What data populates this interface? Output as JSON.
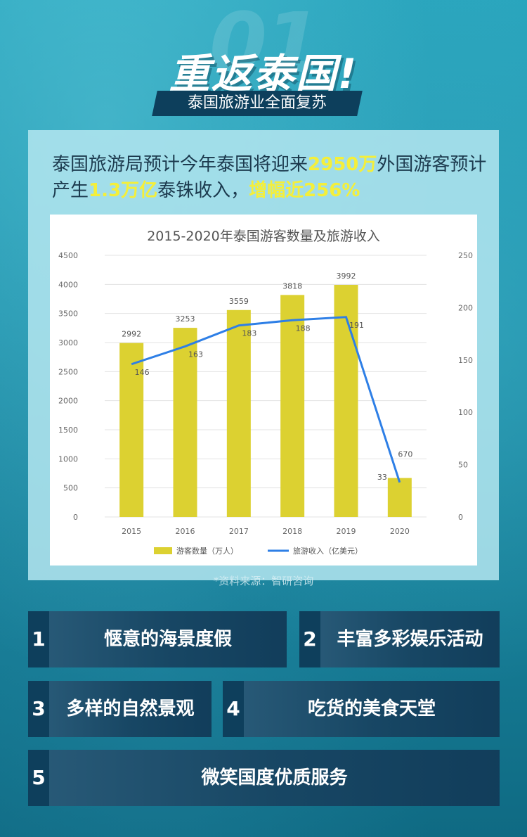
{
  "header": {
    "bg_number": "01",
    "title": "重返泰国!",
    "subtitle": "泰国旅游业全面复苏"
  },
  "intro": {
    "p1": "泰国旅游局预计今年泰国将迎来",
    "h1": "2950万",
    "p2": "外国游客预计产生",
    "h2": "1.3万亿",
    "p3": "泰铢收入，",
    "h3": "增幅近256%"
  },
  "chart_data": {
    "type": "bar",
    "title": "2015-2020年泰国游客数量及旅游收入",
    "categories": [
      "2015",
      "2016",
      "2017",
      "2018",
      "2019",
      "2020"
    ],
    "series": [
      {
        "name": "游客数量（万人）",
        "type": "bar",
        "axis": "left",
        "values": [
          2992,
          3253,
          3559,
          3818,
          3992,
          670
        ]
      },
      {
        "name": "旅游收入（亿美元）",
        "type": "line",
        "axis": "right",
        "values": [
          146,
          163,
          183,
          188,
          191,
          33
        ]
      }
    ],
    "ylim_left": [
      0,
      4500
    ],
    "yticks_left": [
      "0",
      "500",
      "1000",
      "1500",
      "2000",
      "2500",
      "3000",
      "3500",
      "4000",
      "4500"
    ],
    "ylim_right": [
      0,
      250
    ],
    "yticks_right": [
      "0",
      "50",
      "100",
      "150",
      "200",
      "250"
    ],
    "colors": {
      "bar": "#dcd131",
      "line": "#2e7fe6"
    },
    "legend_position": "bottom"
  },
  "source": "*资料来源：智研咨询",
  "features": [
    {
      "num": "1",
      "label": "惬意的海景度假"
    },
    {
      "num": "2",
      "label": "丰富多彩娱乐活动"
    },
    {
      "num": "3",
      "label": "多样的自然景观"
    },
    {
      "num": "4",
      "label": "吃货的美食天堂"
    },
    {
      "num": "5",
      "label": "微笑国度优质服务"
    }
  ]
}
